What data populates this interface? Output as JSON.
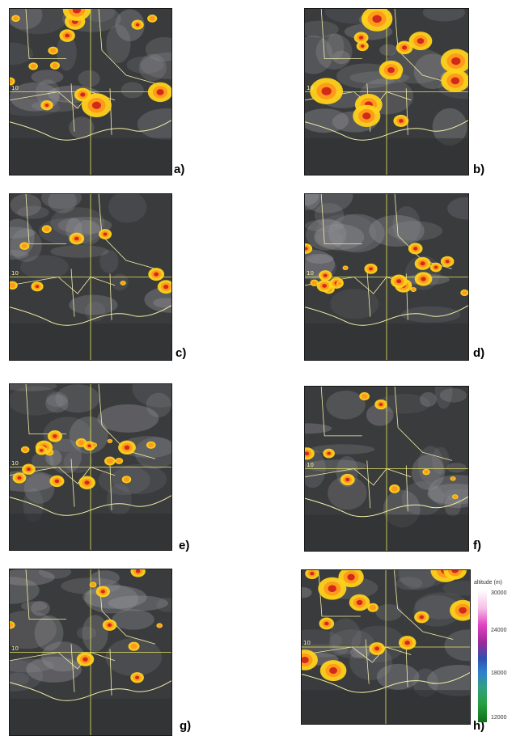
{
  "panels": [
    {
      "id": "a",
      "label": "a)",
      "lat_label": "10",
      "clouds": "storm"
    },
    {
      "id": "b",
      "label": "b)",
      "lat_label": "10",
      "clouds": "storm"
    },
    {
      "id": "c",
      "label": "c)",
      "lat_label": "10",
      "clouds": "sparse"
    },
    {
      "id": "d",
      "label": "d)",
      "lat_label": "10",
      "clouds": "band"
    },
    {
      "id": "e",
      "label": "e)",
      "lat_label": "10",
      "clouds": "band"
    },
    {
      "id": "f",
      "label": "f)",
      "lat_label": "10",
      "clouds": "sparse"
    },
    {
      "id": "g",
      "label": "g)",
      "lat_label": "10",
      "clouds": "sparse"
    },
    {
      "id": "h",
      "label": "h)",
      "lat_label": "10",
      "clouds": "storm"
    }
  ],
  "legend": {
    "title": "altitude (m)",
    "ticks": [
      "30000",
      "24000",
      "18000",
      "12000"
    ]
  },
  "colors": {
    "background_dark": "#3a3b3d",
    "coastline": "#f4f0a8",
    "gridline": "#e8e860",
    "cloud_core": "#d22a1a",
    "cloud_mid": "#ff9a1a",
    "cloud_outer": "#ffd21a"
  }
}
